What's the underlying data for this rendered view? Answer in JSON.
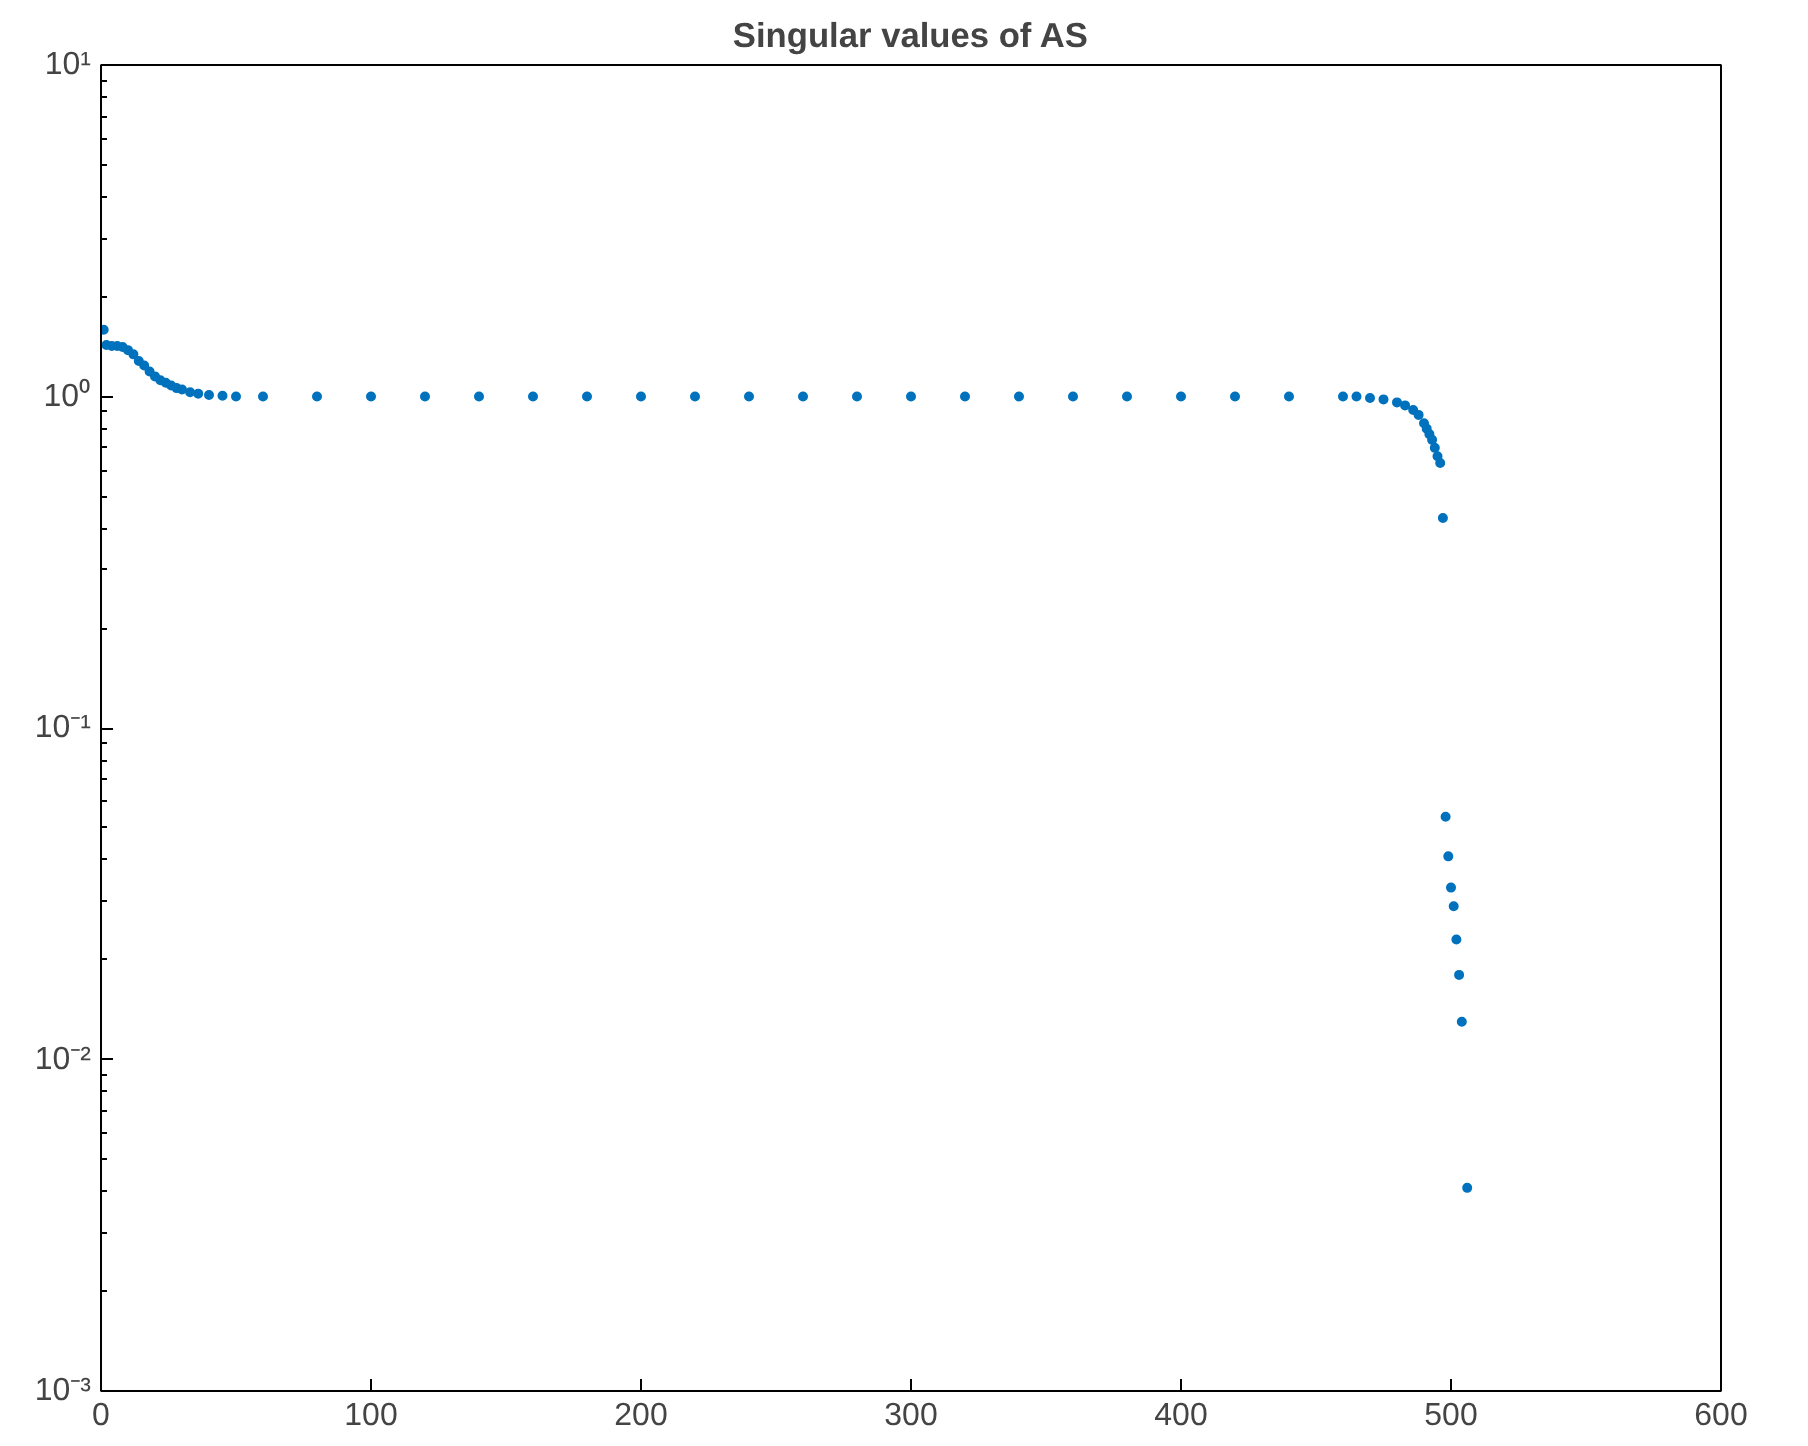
{
  "chart_data": {
    "type": "scatter",
    "title": "Singular values of AS",
    "x": [
      1,
      2,
      4,
      6,
      8,
      10,
      12,
      14,
      16,
      18,
      20,
      22,
      24,
      26,
      28,
      30,
      33,
      36,
      40,
      45,
      50,
      60,
      80,
      100,
      120,
      140,
      160,
      180,
      200,
      220,
      240,
      260,
      280,
      300,
      320,
      340,
      360,
      380,
      400,
      420,
      440,
      460,
      465,
      470,
      475,
      480,
      483,
      486,
      488,
      490,
      491,
      492,
      493,
      494,
      495,
      496,
      497,
      498,
      499,
      500,
      501,
      502,
      503,
      504,
      506
    ],
    "values": [
      1.59,
      1.43,
      1.42,
      1.42,
      1.41,
      1.38,
      1.34,
      1.28,
      1.24,
      1.19,
      1.15,
      1.12,
      1.1,
      1.08,
      1.06,
      1.05,
      1.03,
      1.02,
      1.01,
      1.005,
      1.0,
      1.0,
      1.0,
      1.0,
      1.0,
      1.0,
      1.0,
      1.0,
      1.0,
      1.0,
      1.0,
      1.0,
      1.0,
      1.0,
      1.0,
      1.0,
      1.0,
      1.0,
      1.0,
      1.0,
      1.0,
      1.0,
      1.0,
      0.99,
      0.98,
      0.96,
      0.94,
      0.91,
      0.88,
      0.83,
      0.8,
      0.77,
      0.74,
      0.7,
      0.66,
      0.63,
      0.43,
      0.054,
      0.041,
      0.033,
      0.029,
      0.023,
      0.018,
      0.013,
      0.0041
    ],
    "color": "#0072bd",
    "marker": "circle",
    "log": "y",
    "grid": false,
    "xlim": [
      0,
      600
    ],
    "xticks": [
      0,
      100,
      200,
      300,
      400,
      500,
      600
    ],
    "ylim": [
      0.001,
      10
    ],
    "yticks": [
      {
        "value": 0.001,
        "label": "10⁻³"
      },
      {
        "value": 0.01,
        "label": "10⁻²"
      },
      {
        "value": 0.1,
        "label": "10⁻¹"
      },
      {
        "value": 1,
        "label": "10⁰"
      },
      {
        "value": 10,
        "label": "10¹"
      }
    ]
  }
}
